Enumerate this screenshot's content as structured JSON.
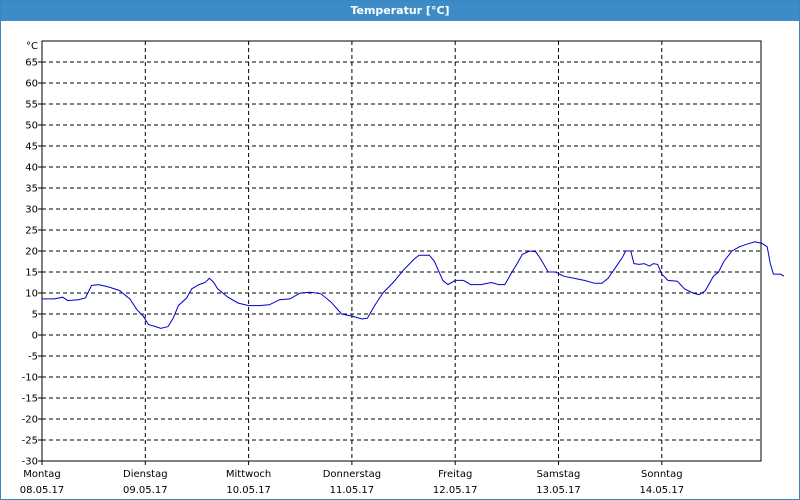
{
  "window": {
    "title": "Temperatur [°C]"
  },
  "colors": {
    "titlebar": "#3d8cc8",
    "line": "#0000cc",
    "grid": "#000000"
  },
  "chart_data": {
    "type": "line",
    "title": "Temperatur [°C]",
    "ylabel": "°C",
    "ylim": [
      -30,
      70
    ],
    "yticks": [
      -30,
      -25,
      -20,
      -15,
      -10,
      -5,
      0,
      5,
      10,
      15,
      20,
      25,
      30,
      35,
      40,
      45,
      50,
      55,
      60,
      65
    ],
    "grid": true,
    "x_range_days": [
      0,
      7
    ],
    "x_ticks": [
      {
        "day": "Montag",
        "date": "08.05.17"
      },
      {
        "day": "Dienstag",
        "date": "09.05.17"
      },
      {
        "day": "Mittwoch",
        "date": "10.05.17"
      },
      {
        "day": "Donnerstag",
        "date": "11.05.17"
      },
      {
        "day": "Freitag",
        "date": "12.05.17"
      },
      {
        "day": "Samstag",
        "date": "13.05.17"
      },
      {
        "day": "Sonntag",
        "date": "14.05.17"
      }
    ],
    "series": [
      {
        "points": [
          [
            0.0,
            8.6
          ],
          [
            0.12,
            8.6
          ],
          [
            0.2,
            9.0
          ],
          [
            0.25,
            8.2
          ],
          [
            0.35,
            8.4
          ],
          [
            0.42,
            8.8
          ],
          [
            0.48,
            11.8
          ],
          [
            0.55,
            12.0
          ],
          [
            0.65,
            11.4
          ],
          [
            0.75,
            10.6
          ],
          [
            0.85,
            8.6
          ],
          [
            0.92,
            6.0
          ],
          [
            0.98,
            4.5
          ],
          [
            1.03,
            2.5
          ],
          [
            1.1,
            2.0
          ],
          [
            1.15,
            1.6
          ],
          [
            1.22,
            2.0
          ],
          [
            1.27,
            4.0
          ],
          [
            1.32,
            7.0
          ],
          [
            1.4,
            8.8
          ],
          [
            1.45,
            11.0
          ],
          [
            1.52,
            12.0
          ],
          [
            1.58,
            12.5
          ],
          [
            1.62,
            13.5
          ],
          [
            1.66,
            12.6
          ],
          [
            1.7,
            11.0
          ],
          [
            1.8,
            9.0
          ],
          [
            1.9,
            7.6
          ],
          [
            2.0,
            7.0
          ],
          [
            2.1,
            7.0
          ],
          [
            2.2,
            7.2
          ],
          [
            2.3,
            8.4
          ],
          [
            2.4,
            8.6
          ],
          [
            2.5,
            10.0
          ],
          [
            2.6,
            10.2
          ],
          [
            2.7,
            9.8
          ],
          [
            2.8,
            7.8
          ],
          [
            2.9,
            5.0
          ],
          [
            3.0,
            4.5
          ],
          [
            3.1,
            3.8
          ],
          [
            3.15,
            4.0
          ],
          [
            3.22,
            7.0
          ],
          [
            3.3,
            10.0
          ],
          [
            3.4,
            12.5
          ],
          [
            3.5,
            15.5
          ],
          [
            3.6,
            18.0
          ],
          [
            3.65,
            19.0
          ],
          [
            3.75,
            19.0
          ],
          [
            3.8,
            17.5
          ],
          [
            3.88,
            13.0
          ],
          [
            3.93,
            12.0
          ],
          [
            4.0,
            13.0
          ],
          [
            4.08,
            13.0
          ],
          [
            4.15,
            12.0
          ],
          [
            4.25,
            12.0
          ],
          [
            4.35,
            12.5
          ],
          [
            4.42,
            12.0
          ],
          [
            4.48,
            12.0
          ],
          [
            4.55,
            15.0
          ],
          [
            4.6,
            17.0
          ],
          [
            4.65,
            19.2
          ],
          [
            4.72,
            20.0
          ],
          [
            4.78,
            19.8
          ],
          [
            4.83,
            18.0
          ],
          [
            4.9,
            15.0
          ],
          [
            4.97,
            15.0
          ],
          [
            5.05,
            14.0
          ],
          [
            5.15,
            13.5
          ],
          [
            5.25,
            13.0
          ],
          [
            5.35,
            12.3
          ],
          [
            5.42,
            12.3
          ],
          [
            5.48,
            13.5
          ],
          [
            5.55,
            16.0
          ],
          [
            5.62,
            18.5
          ],
          [
            5.65,
            20.0
          ],
          [
            5.7,
            20.0
          ],
          [
            5.73,
            17.0
          ],
          [
            5.78,
            16.8
          ],
          [
            5.83,
            17.0
          ],
          [
            5.88,
            16.4
          ],
          [
            5.92,
            17.0
          ],
          [
            5.96,
            16.8
          ],
          [
            6.0,
            14.5
          ],
          [
            6.06,
            13.0
          ],
          [
            6.15,
            12.8
          ],
          [
            6.22,
            11.0
          ],
          [
            6.3,
            10.0
          ],
          [
            6.36,
            9.6
          ],
          [
            6.42,
            10.5
          ],
          [
            6.5,
            14.0
          ],
          [
            6.55,
            15.0
          ],
          [
            6.6,
            17.5
          ],
          [
            6.68,
            20.0
          ],
          [
            6.75,
            21.0
          ],
          [
            6.82,
            21.6
          ],
          [
            6.9,
            22.2
          ],
          [
            6.97,
            21.8
          ],
          [
            7.02,
            21.0
          ],
          [
            7.05,
            17.0
          ],
          [
            7.08,
            14.5
          ],
          [
            7.15,
            14.5
          ],
          [
            7.18,
            14.0
          ]
        ]
      }
    ]
  }
}
